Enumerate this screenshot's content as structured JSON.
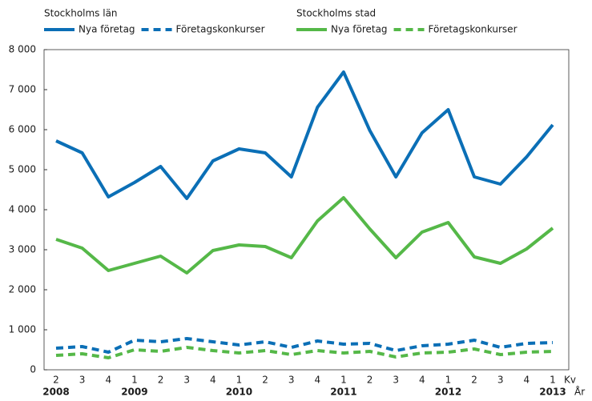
{
  "chart_data": {
    "type": "line",
    "categories": [
      "2",
      "3",
      "4",
      "1",
      "2",
      "3",
      "4",
      "1",
      "2",
      "3",
      "4",
      "1",
      "2",
      "3",
      "4",
      "1",
      "2",
      "3",
      "4",
      "1"
    ],
    "years": [
      "2008",
      "2009",
      "2010",
      "2011",
      "2012",
      "2013"
    ],
    "x_label": "Kv",
    "x2_label": "År",
    "groups": [
      "Stockholms län",
      "Stockholms stad"
    ],
    "series": [
      {
        "group": "Stockholms län",
        "name": "Nya företag",
        "color": "#0b6fb6",
        "dash": false,
        "values": [
          5720,
          5420,
          4320,
          4680,
          5080,
          4280,
          5220,
          5520,
          5420,
          4820,
          6560,
          7440,
          5980,
          4820,
          5920,
          6500,
          4820,
          4640,
          5320,
          6120
        ]
      },
      {
        "group": "Stockholms län",
        "name": "Företagskonkurser",
        "color": "#0b6fb6",
        "dash": true,
        "values": [
          540,
          580,
          440,
          740,
          700,
          780,
          700,
          620,
          700,
          560,
          720,
          640,
          660,
          480,
          600,
          640,
          740,
          560,
          660,
          680
        ]
      },
      {
        "group": "Stockholms stad",
        "name": "Nya företag",
        "color": "#55b848",
        "dash": false,
        "values": [
          3260,
          3040,
          2480,
          2660,
          2840,
          2420,
          2980,
          3120,
          3080,
          2800,
          3720,
          4300,
          3520,
          2800,
          3440,
          3680,
          2820,
          2660,
          3020,
          3540
        ]
      },
      {
        "group": "Stockholms stad",
        "name": "Företagskonkurser",
        "color": "#55b848",
        "dash": true,
        "values": [
          360,
          400,
          300,
          500,
          460,
          560,
          480,
          420,
          480,
          380,
          480,
          420,
          460,
          320,
          420,
          440,
          520,
          380,
          440,
          460
        ]
      }
    ],
    "ylim": [
      0,
      8000
    ],
    "yticks": [
      0,
      {
        "value": 1000,
        "label": "1 000"
      },
      {
        "value": 2000,
        "label": "2 000"
      },
      {
        "value": 3000,
        "label": "3 000"
      },
      {
        "value": 4000,
        "label": "4 000"
      },
      {
        "value": 5000,
        "label": "5 000"
      },
      {
        "value": 6000,
        "label": "6 000"
      },
      {
        "value": 7000,
        "label": "7 000"
      },
      {
        "value": 8000,
        "label": "8 000"
      }
    ],
    "grid": false
  }
}
